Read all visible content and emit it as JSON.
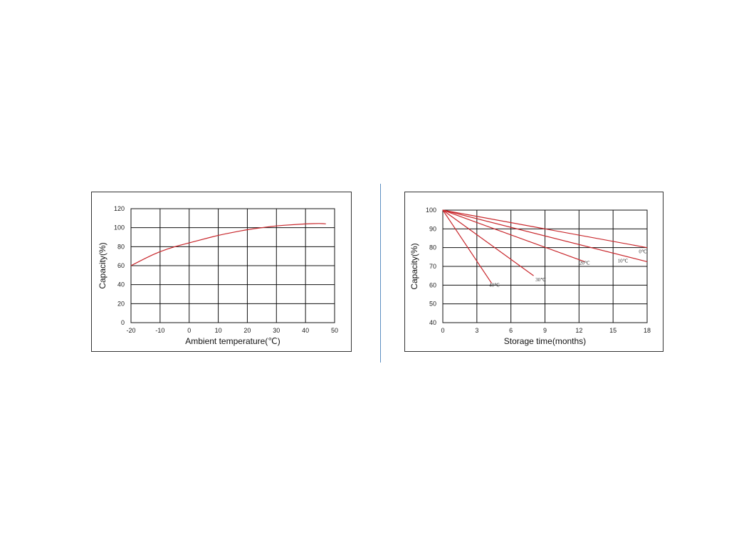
{
  "chart_data": [
    {
      "type": "line",
      "title": "",
      "xlabel": "Ambient temperature(℃)",
      "ylabel": "Capacity(%)",
      "xlim": [
        -20,
        50
      ],
      "ylim": [
        0,
        120
      ],
      "x_ticks": [
        "-20",
        "-10",
        "0",
        "10",
        "20",
        "30",
        "40",
        "50"
      ],
      "y_ticks": [
        "0",
        "20",
        "40",
        "60",
        "80",
        "100",
        "120"
      ],
      "grid": true,
      "line_color": "#c8262b",
      "series": [
        {
          "x": [
            -20,
            -15,
            -10,
            -5,
            0,
            5,
            10,
            15,
            20,
            25,
            30,
            35,
            40,
            45,
            47
          ],
          "y": [
            60,
            68,
            75,
            80,
            84,
            88,
            92,
            95,
            98,
            100,
            102,
            103,
            104,
            104.5,
            104
          ]
        }
      ]
    },
    {
      "type": "line",
      "title": "",
      "xlabel": "Storage time(months)",
      "ylabel": "Capacity(%)",
      "xlim": [
        0,
        18
      ],
      "ylim": [
        40,
        100
      ],
      "x_ticks": [
        "0",
        "3",
        "6",
        "9",
        "12",
        "15",
        "18"
      ],
      "y_ticks": [
        "40",
        "50",
        "60",
        "70",
        "80",
        "90",
        "100"
      ],
      "grid": true,
      "line_color": "#c8262b",
      "series": [
        {
          "name": "0℃",
          "x": [
            0,
            18
          ],
          "y": [
            100,
            80
          ]
        },
        {
          "name": "10℃",
          "x": [
            0,
            18
          ],
          "y": [
            100,
            72.5
          ]
        },
        {
          "name": "20℃",
          "x": [
            0,
            12.5
          ],
          "y": [
            100,
            72.5
          ]
        },
        {
          "name": "30℃",
          "x": [
            0,
            8
          ],
          "y": [
            100,
            65
          ]
        },
        {
          "name": "40℃",
          "x": [
            0,
            4.3
          ],
          "y": [
            100,
            61
          ]
        }
      ]
    }
  ]
}
